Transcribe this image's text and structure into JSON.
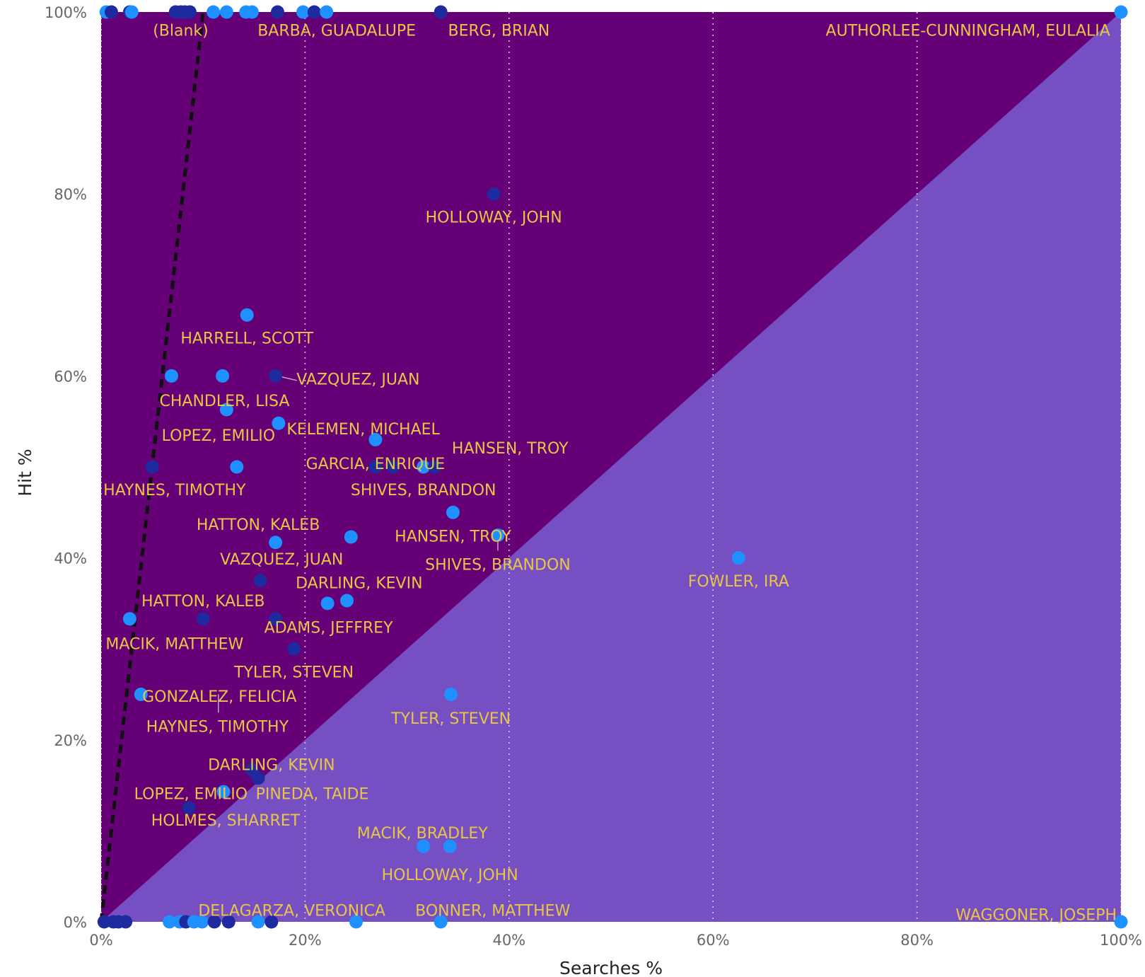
{
  "chart_data": {
    "type": "scatter",
    "xlabel": "Searches %",
    "ylabel": "Hit %",
    "xlim": [
      0,
      100
    ],
    "ylim": [
      0,
      100
    ],
    "x_ticks": [
      "0%",
      "20%",
      "40%",
      "60%",
      "80%",
      "100%"
    ],
    "y_ticks": [
      "0%",
      "20%",
      "40%",
      "60%",
      "80%",
      "100%"
    ],
    "grid": "vertical dotted",
    "regions": {
      "upper_left_color": "#660077",
      "lower_right_color": "#7650c2",
      "boundary": "diagonal x = y"
    },
    "trend_line": {
      "style": "dashed",
      "color": "#111111",
      "points": [
        [
          0,
          0
        ],
        [
          5,
          50
        ],
        [
          10,
          100
        ]
      ]
    },
    "colors": {
      "light": "#1e90ff",
      "dark": "#1f2a9e",
      "label": "#e8c547"
    },
    "points": [
      {
        "x": 0.5,
        "y": 100,
        "c": "light"
      },
      {
        "x": 1,
        "y": 100,
        "c": "dark"
      },
      {
        "x": 2.8,
        "y": 100,
        "c": "dark"
      },
      {
        "x": 3,
        "y": 100,
        "c": "light"
      },
      {
        "x": 7.3,
        "y": 100,
        "c": "dark"
      },
      {
        "x": 7.8,
        "y": 100,
        "c": "dark"
      },
      {
        "x": 8.2,
        "y": 100,
        "c": "dark"
      },
      {
        "x": 8.7,
        "y": 100,
        "c": "dark"
      },
      {
        "x": 11,
        "y": 100,
        "c": "light"
      },
      {
        "x": 12.3,
        "y": 100,
        "c": "light"
      },
      {
        "x": 14.2,
        "y": 100,
        "c": "light"
      },
      {
        "x": 14.8,
        "y": 100,
        "c": "light"
      },
      {
        "x": 17.3,
        "y": 100,
        "c": "dark"
      },
      {
        "x": 19.8,
        "y": 100,
        "c": "light"
      },
      {
        "x": 20.9,
        "y": 100,
        "c": "dark"
      },
      {
        "x": 22.1,
        "y": 100,
        "c": "light"
      },
      {
        "x": 33.3,
        "y": 100,
        "c": "dark"
      },
      {
        "x": 100,
        "y": 100,
        "c": "light"
      },
      {
        "x": 38.5,
        "y": 80,
        "c": "dark"
      },
      {
        "x": 14.3,
        "y": 66.7,
        "c": "light"
      },
      {
        "x": 6.9,
        "y": 60,
        "c": "light"
      },
      {
        "x": 11.9,
        "y": 60,
        "c": "light"
      },
      {
        "x": 17.1,
        "y": 60,
        "c": "dark"
      },
      {
        "x": 12.3,
        "y": 56.3,
        "c": "light"
      },
      {
        "x": 17.4,
        "y": 54.8,
        "c": "light"
      },
      {
        "x": 26.9,
        "y": 53,
        "c": "light"
      },
      {
        "x": 5,
        "y": 50,
        "c": "dark"
      },
      {
        "x": 13.3,
        "y": 50,
        "c": "light"
      },
      {
        "x": 26.9,
        "y": 50,
        "c": "dark"
      },
      {
        "x": 28.6,
        "y": 50,
        "c": "dark"
      },
      {
        "x": 31.6,
        "y": 50,
        "c": "light"
      },
      {
        "x": 32.7,
        "y": 50,
        "c": "dark"
      },
      {
        "x": 34.5,
        "y": 45,
        "c": "light"
      },
      {
        "x": 24.5,
        "y": 42.3,
        "c": "light"
      },
      {
        "x": 17.1,
        "y": 41.7,
        "c": "light"
      },
      {
        "x": 38.9,
        "y": 42.5,
        "c": "light"
      },
      {
        "x": 62.5,
        "y": 40,
        "c": "light"
      },
      {
        "x": 15.6,
        "y": 37.5,
        "c": "dark"
      },
      {
        "x": 22.2,
        "y": 35,
        "c": "light"
      },
      {
        "x": 24.1,
        "y": 35.3,
        "c": "light"
      },
      {
        "x": 2.8,
        "y": 33.3,
        "c": "light"
      },
      {
        "x": 10,
        "y": 33.3,
        "c": "dark"
      },
      {
        "x": 17.1,
        "y": 33.3,
        "c": "dark"
      },
      {
        "x": 18.9,
        "y": 30,
        "c": "dark"
      },
      {
        "x": 3.9,
        "y": 25,
        "c": "light"
      },
      {
        "x": 34.3,
        "y": 25,
        "c": "light"
      },
      {
        "x": 14.8,
        "y": 16.7,
        "c": "dark"
      },
      {
        "x": 15.4,
        "y": 15.8,
        "c": "dark"
      },
      {
        "x": 12,
        "y": 14.3,
        "c": "light"
      },
      {
        "x": 8.6,
        "y": 12.5,
        "c": "dark"
      },
      {
        "x": 31.6,
        "y": 8.3,
        "c": "light"
      },
      {
        "x": 34.2,
        "y": 8.3,
        "c": "light"
      },
      {
        "x": 0.3,
        "y": 0,
        "c": "dark"
      },
      {
        "x": 1.2,
        "y": 0,
        "c": "dark"
      },
      {
        "x": 1.7,
        "y": 0,
        "c": "dark"
      },
      {
        "x": 2.4,
        "y": 0,
        "c": "dark"
      },
      {
        "x": 6.7,
        "y": 0,
        "c": "light"
      },
      {
        "x": 7.7,
        "y": 0,
        "c": "light"
      },
      {
        "x": 8.3,
        "y": 0,
        "c": "dark"
      },
      {
        "x": 9.1,
        "y": 0,
        "c": "light"
      },
      {
        "x": 9.9,
        "y": 0,
        "c": "light"
      },
      {
        "x": 11.1,
        "y": 0,
        "c": "dark"
      },
      {
        "x": 12.5,
        "y": 0,
        "c": "dark"
      },
      {
        "x": 15.4,
        "y": 0,
        "c": "light"
      },
      {
        "x": 16.7,
        "y": 0,
        "c": "dark"
      },
      {
        "x": 25,
        "y": 0,
        "c": "light"
      },
      {
        "x": 33.3,
        "y": 0,
        "c": "light"
      },
      {
        "x": 100,
        "y": 0,
        "c": "light"
      }
    ],
    "labels": [
      {
        "text": "(Blank)",
        "x": 7.8,
        "y": 98
      },
      {
        "text": "BARBA, GUADALUPE",
        "x": 23.1,
        "y": 98
      },
      {
        "text": "BERG, BRIAN",
        "x": 39,
        "y": 98
      },
      {
        "text": "AUTHORLEE-CUNNINGHAM, EULALIA",
        "x": 85,
        "y": 98
      },
      {
        "text": "HOLLOWAY, JOHN",
        "x": 38.5,
        "y": 77.5
      },
      {
        "text": "HARRELL, SCOTT",
        "x": 14.3,
        "y": 64.2
      },
      {
        "text": "VAZQUEZ, JUAN",
        "x": 25.2,
        "y": 59.7
      },
      {
        "text": "CHANDLER, LISA",
        "x": 12.1,
        "y": 57.3
      },
      {
        "text": "LOPEZ, EMILIO",
        "x": 11.5,
        "y": 53.5
      },
      {
        "text": "KELEMEN, MICHAEL",
        "x": 25.7,
        "y": 54.2
      },
      {
        "text": "HANSEN, TROY",
        "x": 40.1,
        "y": 52.1
      },
      {
        "text": "GARCIA, ENRIQUE",
        "x": 26.9,
        "y": 50.4
      },
      {
        "text": "HAYNES, TIMOTHY",
        "x": 7.2,
        "y": 47.5
      },
      {
        "text": "SHIVES, BRANDON",
        "x": 31.6,
        "y": 47.5
      },
      {
        "text": "HATTON, KALEB",
        "x": 15.4,
        "y": 43.7
      },
      {
        "text": "HANSEN, TROY",
        "x": 34.5,
        "y": 42.4
      },
      {
        "text": "VAZQUEZ, JUAN",
        "x": 17.7,
        "y": 39.9
      },
      {
        "text": "SHIVES, BRANDON",
        "x": 38.9,
        "y": 39.3
      },
      {
        "text": "FOWLER, IRA",
        "x": 62.5,
        "y": 37.5
      },
      {
        "text": "DARLING, KEVIN",
        "x": 25.3,
        "y": 37.3
      },
      {
        "text": "HATTON, KALEB",
        "x": 10,
        "y": 35.3
      },
      {
        "text": "ADAMS, JEFFREY",
        "x": 22.3,
        "y": 32.4
      },
      {
        "text": "MACIK, MATTHEW",
        "x": 7.2,
        "y": 30.6
      },
      {
        "text": "TYLER, STEVEN",
        "x": 18.9,
        "y": 27.5
      },
      {
        "text": "GONZALEZ, FELICIA",
        "x": 11.6,
        "y": 24.8
      },
      {
        "text": "TYLER, STEVEN",
        "x": 34.3,
        "y": 22.4
      },
      {
        "text": "HAYNES, TIMOTHY",
        "x": 11.4,
        "y": 21.5
      },
      {
        "text": "DARLING, KEVIN",
        "x": 16.7,
        "y": 17.3
      },
      {
        "text": "LOPEZ, EMILIO",
        "x": 8.8,
        "y": 14.1
      },
      {
        "text": "PINEDA, TAIDE",
        "x": 20.7,
        "y": 14.1
      },
      {
        "text": "HOLMES, SHARRET",
        "x": 12.2,
        "y": 11.2
      },
      {
        "text": "MACIK, BRADLEY",
        "x": 31.5,
        "y": 9.8
      },
      {
        "text": "HOLLOWAY, JOHN",
        "x": 34.2,
        "y": 5.2
      },
      {
        "text": "DELAGARZA, VERONICA",
        "x": 18.7,
        "y": 1.3
      },
      {
        "text": "BONNER, MATTHEW",
        "x": 38.4,
        "y": 1.3
      },
      {
        "text": "WAGGONER, JOSEPH",
        "x": 93,
        "y": 0.8
      }
    ],
    "leaders": [
      {
        "from": [
          17.3,
          60
        ],
        "to": [
          19.2,
          59.5
        ]
      },
      {
        "from": [
          11.5,
          25
        ],
        "to": [
          11.5,
          23
        ]
      },
      {
        "from": [
          38.9,
          42.5
        ],
        "to": [
          38.9,
          40.8
        ]
      }
    ]
  }
}
